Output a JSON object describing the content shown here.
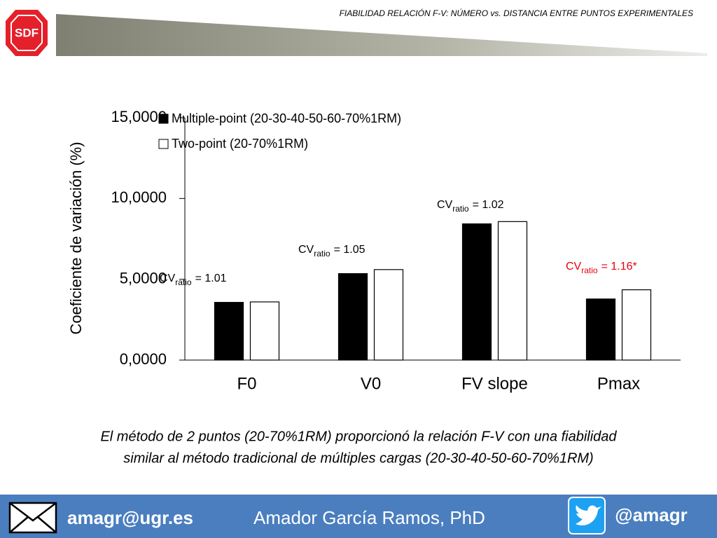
{
  "header": {
    "title": "FIABILIDAD RELACIÓN F-V: NÚMERO vs. DISTANCIA ENTRE PUNTOS EXPERIMENTALES",
    "logo": "SDF"
  },
  "chart_data": {
    "type": "bar",
    "y_label": "Coeficiente de variación (%)",
    "categories": [
      "F0",
      "V0",
      "FV slope",
      "Pmax"
    ],
    "series": [
      {
        "name": "Multiple-point (20-30-40-50-60-70%1RM)",
        "color": "#000000",
        "values": [
          3.57,
          5.35,
          8.43,
          3.78
        ]
      },
      {
        "name": "Two-point (20-70%1RM)",
        "color": "#ffffff",
        "values": [
          3.6,
          5.6,
          8.57,
          4.35
        ]
      }
    ],
    "ylim": [
      0,
      15
    ],
    "yticks": [
      {
        "value": 0,
        "label": "0,0000"
      },
      {
        "value": 5,
        "label": "5,0000"
      },
      {
        "value": 10,
        "label": "10,0000"
      },
      {
        "value": 15,
        "label": "15,0000"
      }
    ],
    "legend": "upper left",
    "annotations": [
      {
        "base": "CV",
        "subscript": "ratio",
        "text": "= 1.01",
        "color": "#000000"
      },
      {
        "base": "CV",
        "subscript": "ratio",
        "text": "= 1.05",
        "color": "#000000"
      },
      {
        "base": "CV",
        "subscript": "ratio",
        "text": "= 1.02",
        "color": "#000000"
      },
      {
        "base": "CV",
        "subscript": "ratio",
        "text": "= 1.16*",
        "color": "#e8000b"
      }
    ]
  },
  "caption": [
    "El método de 2 puntos (20-70%1RM) proporcionó la relación F-V con una fiabilidad",
    "similar al método tradicional de múltiples cargas (20-30-40-50-60-70%1RM)"
  ],
  "footer": {
    "email": "amagr@ugr.es",
    "author": "Amador García Ramos, PhD",
    "handle": "@amagr"
  }
}
